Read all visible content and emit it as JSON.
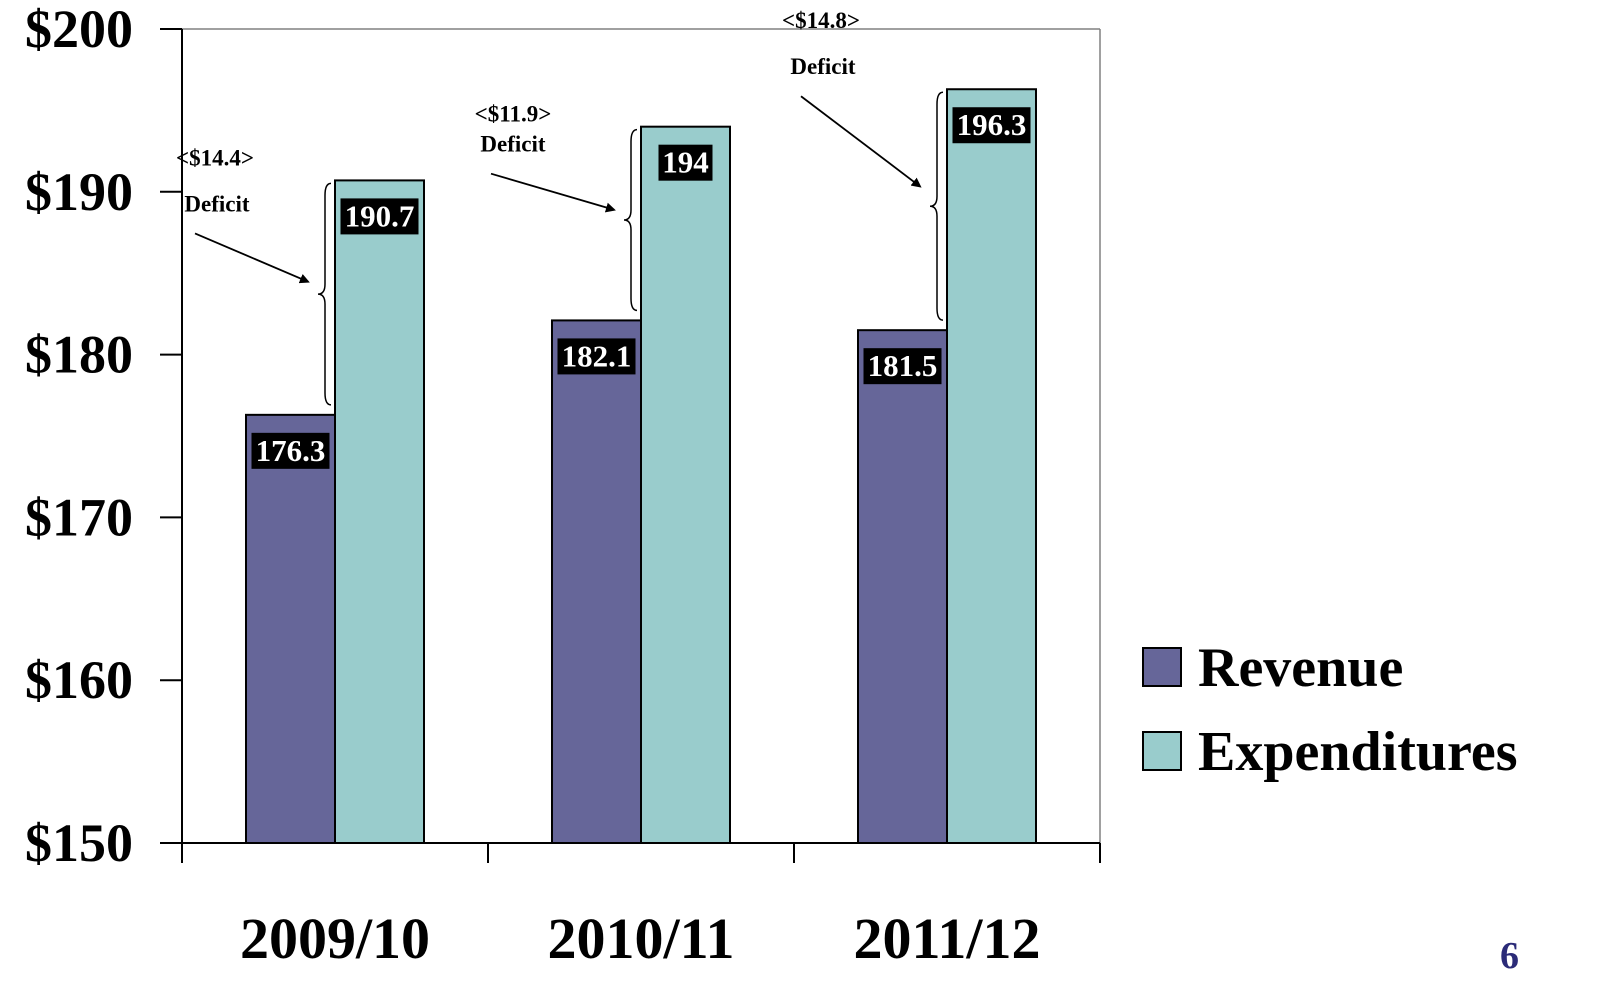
{
  "chart_data": {
    "type": "bar",
    "categories": [
      "2009/10",
      "2010/11",
      "2011/12"
    ],
    "series": [
      {
        "name": "Revenue",
        "values": [
          176.3,
          182.1,
          181.5
        ],
        "color": "#666699"
      },
      {
        "name": "Expenditures",
        "values": [
          190.7,
          194,
          196.3
        ],
        "color": "#99CCCC"
      }
    ],
    "value_labels": {
      "Revenue": [
        "176.3",
        "182.1",
        "181.5"
      ],
      "Expenditures": [
        "190.7",
        "194",
        "196.3"
      ]
    },
    "ylim": [
      150,
      200
    ],
    "yticks": [
      150,
      160,
      170,
      180,
      190,
      200
    ],
    "ytick_labels": [
      "$150",
      "$160",
      "$170",
      "$180",
      "$190",
      "$200"
    ],
    "annotations": [
      {
        "amount": "<$14.4>",
        "label": "Deficit"
      },
      {
        "amount": "<$11.9>",
        "label": "Deficit"
      },
      {
        "amount": "<$14.8>",
        "label": "Deficit"
      }
    ],
    "legend": {
      "position": "right",
      "entries": [
        "Revenue",
        "Expenditures"
      ]
    },
    "grid": false
  },
  "page_number": "6"
}
